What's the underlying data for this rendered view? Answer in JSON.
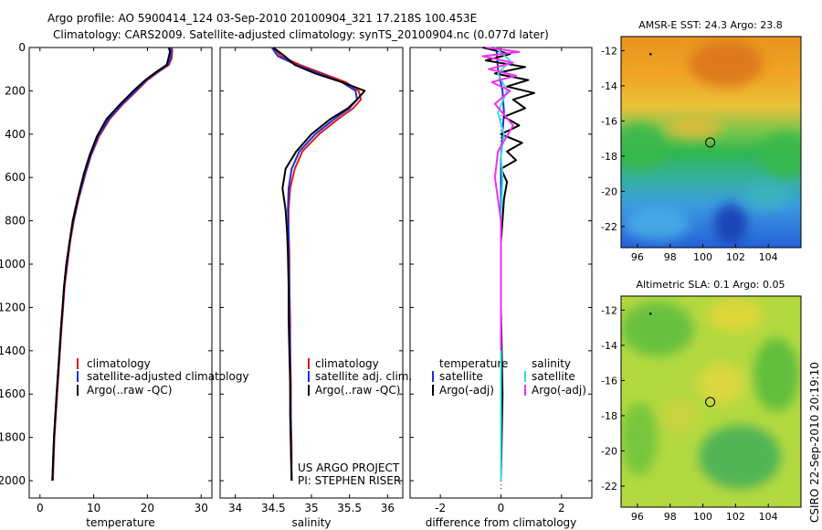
{
  "header": {
    "line1": "Argo profile: AO 5900414_124 03-Sep-2010 20100904_321 17.218S 100.453E",
    "line2": "Climatology: CARS2009. Satellite-adjusted climatology: synTS_20100904.nc (0.077d later)"
  },
  "side_text": "CSIRO 22-Sep-2010 20:19:10",
  "project": {
    "line1": "US ARGO PROJECT",
    "line2": "PI: STEPHEN RISER"
  },
  "colors": {
    "climatology": "#e31a1c",
    "satellite": "#1f2fd6",
    "argo": "#000000",
    "cyan": "#33e0e0",
    "magenta": "#ee33ee"
  },
  "chart_data": [
    {
      "type": "line",
      "id": "temperature",
      "xlabel": "temperature",
      "ylabel": "",
      "xlim": [
        -2,
        32
      ],
      "ylim": [
        2080,
        0
      ],
      "xticks": [
        0,
        10,
        20,
        30
      ],
      "yticks": [
        0,
        200,
        400,
        600,
        800,
        1000,
        1200,
        1400,
        1600,
        1800,
        2000
      ],
      "legend": [
        "climatology",
        "satellite-adjusted climatology",
        "Argo(..raw -QC)"
      ],
      "series": [
        {
          "name": "climatology",
          "color": "#e31a1c",
          "x": [
            24.6,
            24.6,
            24.5,
            24.0,
            22.2,
            20.0,
            18.0,
            15.5,
            13.0,
            11.0,
            9.5,
            8.5,
            7.2,
            6.3,
            5.6,
            5.1,
            4.6,
            4.3,
            4.0,
            3.6,
            3.2,
            2.7,
            2.4
          ],
          "y": [
            0,
            20,
            50,
            80,
            110,
            150,
            200,
            260,
            330,
            410,
            500,
            580,
            700,
            800,
            900,
            1000,
            1100,
            1200,
            1300,
            1450,
            1600,
            1800,
            2000
          ]
        },
        {
          "name": "satellite-adjusted climatology",
          "color": "#1f2fd6",
          "x": [
            24.4,
            24.4,
            24.3,
            23.8,
            22.0,
            19.8,
            17.8,
            15.3,
            12.8,
            10.8,
            9.4,
            8.4,
            7.1,
            6.2,
            5.5,
            5.0,
            4.5,
            4.2,
            3.9,
            3.5,
            3.1,
            2.6,
            2.3
          ],
          "y": [
            0,
            20,
            50,
            80,
            110,
            150,
            200,
            260,
            330,
            410,
            500,
            580,
            700,
            800,
            900,
            1000,
            1100,
            1200,
            1300,
            1450,
            1600,
            1800,
            2000
          ]
        },
        {
          "name": "Argo(..raw -QC)",
          "color": "#000000",
          "x": [
            24.0,
            24.2,
            23.9,
            23.6,
            21.8,
            19.6,
            17.4,
            15.0,
            12.4,
            10.6,
            9.2,
            8.2,
            7.0,
            6.1,
            5.5,
            4.9,
            4.5,
            4.2,
            3.9,
            3.5,
            3.1,
            2.6,
            2.3
          ],
          "y": [
            0,
            20,
            50,
            80,
            110,
            150,
            200,
            260,
            330,
            410,
            500,
            580,
            700,
            800,
            900,
            1000,
            1100,
            1200,
            1300,
            1450,
            1600,
            1800,
            2000
          ]
        }
      ]
    },
    {
      "type": "line",
      "id": "salinity",
      "xlabel": "salinity",
      "ylabel": "",
      "xlim": [
        33.8,
        36.2
      ],
      "ylim": [
        2080,
        0
      ],
      "xticks": [
        34,
        34.5,
        35,
        35.5,
        36
      ],
      "legend": [
        "climatology",
        "satellite adj. clim.",
        "Argo(..raw -QC)"
      ],
      "series": [
        {
          "name": "climatology",
          "color": "#e31a1c",
          "x": [
            34.5,
            34.6,
            34.85,
            35.15,
            35.45,
            35.62,
            35.65,
            35.55,
            35.35,
            35.1,
            34.88,
            34.78,
            34.72,
            34.7,
            34.7,
            34.71,
            34.71,
            34.72,
            34.72,
            34.73,
            34.73,
            34.74,
            34.74
          ],
          "y": [
            0,
            40,
            80,
            120,
            160,
            200,
            240,
            280,
            330,
            400,
            480,
            560,
            650,
            750,
            850,
            950,
            1100,
            1250,
            1400,
            1550,
            1700,
            1850,
            2000
          ]
        },
        {
          "name": "satellite adj. clim.",
          "color": "#1f2fd6",
          "x": [
            34.48,
            34.56,
            34.8,
            35.1,
            35.4,
            35.58,
            35.6,
            35.5,
            35.3,
            35.05,
            34.84,
            34.74,
            34.7,
            34.69,
            34.7,
            34.7,
            34.71,
            34.71,
            34.72,
            34.72,
            34.73,
            34.73,
            34.74
          ],
          "y": [
            0,
            40,
            80,
            120,
            160,
            200,
            240,
            280,
            330,
            400,
            480,
            560,
            650,
            750,
            850,
            950,
            1100,
            1250,
            1400,
            1550,
            1700,
            1850,
            2000
          ]
        },
        {
          "name": "Argo(..raw -QC)",
          "color": "#000000",
          "x": [
            34.5,
            34.65,
            34.78,
            35.05,
            35.4,
            35.7,
            35.6,
            35.48,
            35.25,
            35.0,
            34.8,
            34.66,
            34.62,
            34.66,
            34.68,
            34.69,
            34.7,
            34.7,
            34.71,
            34.72,
            34.72,
            34.73,
            34.74
          ],
          "y": [
            0,
            40,
            80,
            120,
            160,
            200,
            240,
            280,
            330,
            400,
            480,
            560,
            650,
            750,
            850,
            950,
            1100,
            1250,
            1400,
            1550,
            1700,
            1850,
            2000
          ]
        }
      ]
    },
    {
      "type": "line",
      "id": "difference",
      "xlabel": "difference from climatology",
      "ylabel": "",
      "xlim": [
        -3,
        3
      ],
      "ylim": [
        2080,
        0
      ],
      "xticks": [
        -2,
        0,
        2
      ],
      "legend": [
        "temperature",
        "satellite",
        "Argo(-adj)",
        "salinity",
        "satellite",
        "Argo(-adj)"
      ],
      "series": [
        {
          "name": "temperature satellite",
          "color": "#1f2fd6",
          "x": [
            -0.15,
            -0.1,
            0.05,
            0.1,
            0.05,
            0.0,
            0.0,
            0.0,
            0.0,
            0.0,
            0.0,
            0.0
          ],
          "y": [
            0,
            100,
            200,
            300,
            400,
            500,
            700,
            900,
            1200,
            1500,
            1800,
            2000
          ]
        },
        {
          "name": "temperature Argo(-adj)",
          "color": "#000000",
          "x": [
            -0.6,
            0.3,
            -0.5,
            0.8,
            -0.2,
            0.9,
            0.2,
            1.1,
            0.4,
            0.8,
            0.1,
            0.6,
            0.0,
            0.7,
            0.2,
            0.5,
            0.0,
            0.2,
            0.1,
            0.0,
            0.0,
            0.05,
            0.0
          ],
          "y": [
            0,
            30,
            60,
            90,
            120,
            150,
            180,
            210,
            240,
            280,
            320,
            360,
            400,
            440,
            480,
            520,
            560,
            620,
            700,
            900,
            1200,
            1600,
            2000
          ]
        },
        {
          "name": "salinity satellite",
          "color": "#33e0e0",
          "x": [
            -0.2,
            0.3,
            -0.1,
            0.2,
            -0.1,
            0.1,
            0.0,
            0.05,
            0.0,
            0.0,
            0.0,
            0.0
          ],
          "y": [
            0,
            60,
            120,
            200,
            300,
            400,
            500,
            600,
            800,
            1100,
            1500,
            2000
          ]
        },
        {
          "name": "salinity Argo(-adj)",
          "color": "#ee33ee",
          "x": [
            -0.5,
            0.6,
            -0.6,
            0.4,
            -0.4,
            0.5,
            -0.3,
            0.3,
            -0.2,
            0.4,
            -0.1,
            -0.2,
            -0.1,
            0.0,
            0.0,
            0.0
          ],
          "y": [
            0,
            20,
            40,
            70,
            100,
            130,
            160,
            200,
            260,
            360,
            480,
            600,
            700,
            800,
            1100,
            1400
          ]
        }
      ]
    },
    {
      "type": "heatmap",
      "id": "sst",
      "title": "AMSR-E SST: 24.3  Argo: 23.8",
      "xlim": [
        95,
        106
      ],
      "ylim": [
        -23.2,
        -11.2
      ],
      "xticks": [
        96,
        98,
        100,
        102,
        104
      ],
      "yticks": [
        -12,
        -14,
        -16,
        -18,
        -20,
        -22
      ],
      "marker": {
        "lon": 100.45,
        "lat": -17.22
      },
      "dot": {
        "lon": 96.8,
        "lat": -12.2
      }
    },
    {
      "type": "heatmap",
      "id": "sla",
      "title": "Altimetric SLA: 0.1  Argo: 0.05",
      "xlim": [
        95,
        106
      ],
      "ylim": [
        -23.2,
        -11.2
      ],
      "xticks": [
        96,
        98,
        100,
        102,
        104
      ],
      "yticks": [
        -12,
        -14,
        -16,
        -18,
        -20,
        -22
      ],
      "marker": {
        "lon": 100.45,
        "lat": -17.22
      },
      "dot": {
        "lon": 96.8,
        "lat": -12.2
      }
    }
  ]
}
